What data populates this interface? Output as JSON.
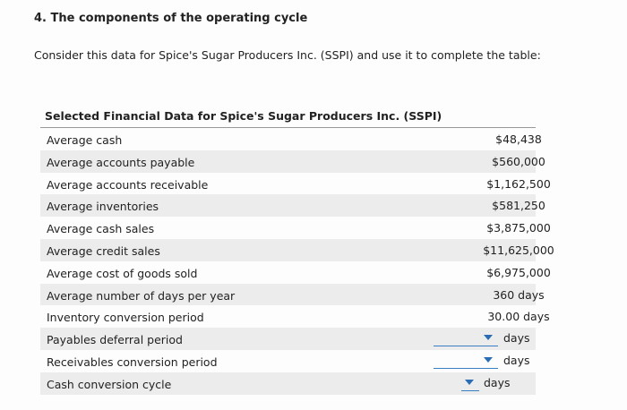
{
  "question": {
    "title": "4. The components of the operating cycle",
    "prompt": "Consider this data for Spice's Sugar Producers Inc. (SSPI) and use it to complete the table:"
  },
  "table": {
    "header": "Selected Financial Data for Spice's Sugar Producers Inc. (SSPI)",
    "rows": [
      {
        "label": "Average cash",
        "value": "$48,438"
      },
      {
        "label": "Average accounts payable",
        "value": "$560,000"
      },
      {
        "label": "Average accounts receivable",
        "value": "$1,162,500"
      },
      {
        "label": "Average inventories",
        "value": "$581,250"
      },
      {
        "label": "Average cash sales",
        "value": "$3,875,000"
      },
      {
        "label": "Average credit sales",
        "value": "$11,625,000"
      },
      {
        "label": "Average cost of goods sold",
        "value": "$6,975,000"
      },
      {
        "label": "Average number of days per year",
        "value": "360 days"
      },
      {
        "label": "Inventory conversion period",
        "value": "30.00 days"
      },
      {
        "label": "Payables deferral period",
        "unit": "days"
      },
      {
        "label": "Receivables conversion period",
        "unit": "days"
      },
      {
        "label": "Cash conversion cycle",
        "unit": "days"
      }
    ]
  }
}
